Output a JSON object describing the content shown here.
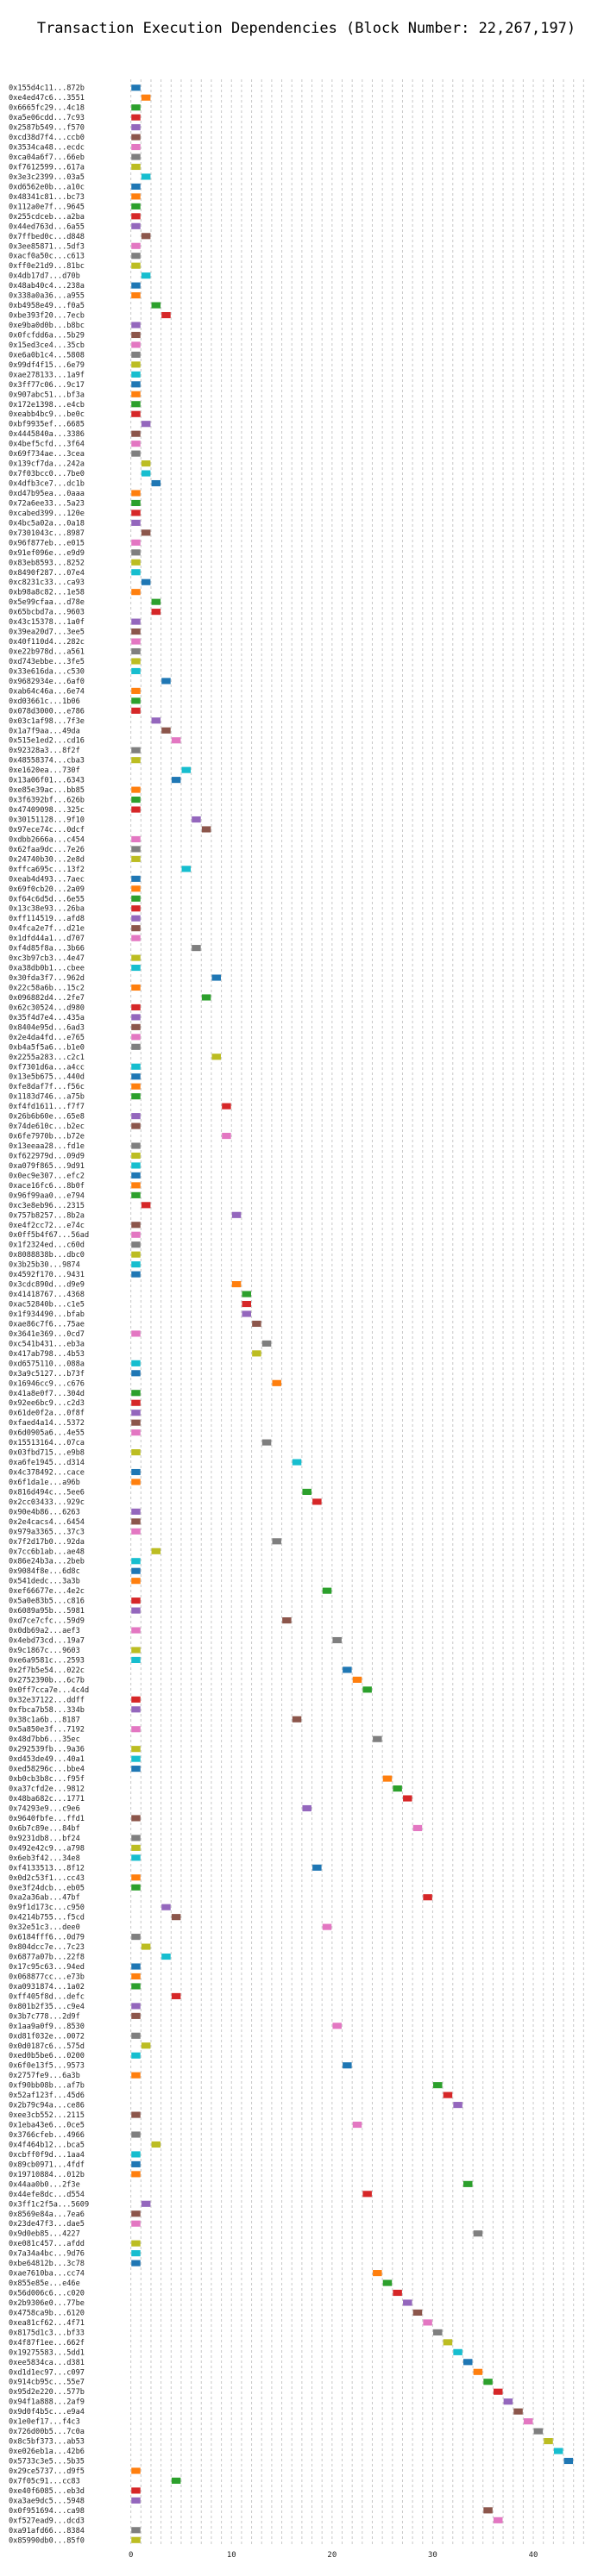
{
  "chart_data": {
    "type": "bar",
    "orientation": "horizontal",
    "title": "Transaction Execution Dependencies (Block Number: 22,267,197)",
    "xlabel": "",
    "ylabel": "",
    "xlim": [
      -1,
      46
    ],
    "xticks": [
      0,
      10,
      20,
      30,
      40
    ],
    "grid": true,
    "bar_width": 0.9,
    "palette": [
      "#1f77b4",
      "#ff7f0e",
      "#2ca02c",
      "#d62728",
      "#9467bd",
      "#8c564b",
      "#e377c2",
      "#7f7f7f",
      "#bcbd22",
      "#17becf"
    ],
    "categories": [
      "0x155d4c11...872b",
      "0xe4ed47c6...3551",
      "0x6665fc29...4c18",
      "0xa5e06cdd...7c93",
      "0x2587b549...f570",
      "0xcd38d7f4...ccb0",
      "0x3534ca48...ecdc",
      "0xca04a6f7...66eb",
      "0xf7612599...617a",
      "0x3e3c2399...03a5",
      "0xd6562e0b...a10c",
      "0x48341c81...bc73",
      "0x112a0e7f...9645",
      "0x255cdceb...a2ba",
      "0x44ed763d...6a55",
      "0x7ffbed0c...d848",
      "0x3ee85871...5df3",
      "0xacf0a50c...c613",
      "0xff0e21d9...81bc",
      "0x4db17d7...d70b",
      "0x48ab40c4...238a",
      "0x338a0a36...a955",
      "0xb4958e49...f0a5",
      "0xbe393f20...7ecb",
      "0xe9ba0d0b...b8bc",
      "0x0fcfdd6a...5b29",
      "0x15ed3ce4...35cb",
      "0xe6a0b1c4...5808",
      "0x99df4f15...6e79",
      "0xae278133...1a9f",
      "0x3ff77c06...9c17",
      "0x907abc51...bf3a",
      "0x172e1398...e4cb",
      "0xeabb4bc9...be0c",
      "0xbf9935ef...6685",
      "0x4445840a...3386",
      "0x4bef5cfd...3f64",
      "0x69f734ae...3cea",
      "0x139cf7da...242a",
      "0x7f03bcc0...7be0",
      "0x4dfb3ce7...dc1b",
      "0xd47b95ea...0aaa",
      "0x72a6ee33...5a23",
      "0xcabed399...120e",
      "0x4bc5a02a...0a18",
      "0x7301043c...8987",
      "0x96f877eb...e015",
      "0x91ef096e...e9d9",
      "0x83eb8593...8252",
      "0x8490f287...07e4",
      "0xc8231c33...ca93",
      "0xb98a8c82...1e58",
      "0x5e99cfaa...d78e",
      "0x65bcbd7a...9603",
      "0x43c15378...1a0f",
      "0x39ea20d7...3ee5",
      "0x40f110d4...282c",
      "0xe22b978d...a561",
      "0xd743ebbe...3fe5",
      "0x33e616da...c530",
      "0x9682934e...6af0",
      "0xab64c46a...6e74",
      "0xd03661c...1b06",
      "0x078d3000...e786",
      "0x03c1af98...7f3e",
      "0x1a7f9aa...49da",
      "0x515e1ed2...cd16",
      "0x92328a3...8f2f",
      "0x48558374...cba3",
      "0xe1620ea...730f",
      "0x13a06f01...6343",
      "0xe85e39ac...bb85",
      "0x3f6392bf...626b",
      "0x47409098...325c",
      "0x30151128...9f10",
      "0x97ece74c...0dcf",
      "0xdbb2666a...c454",
      "0x62faa9dc...7e26",
      "0x24740b30...2e8d",
      "0xffca695c...13f2",
      "0xeab4d493...7aec",
      "0x69f0cb20...2a09",
      "0xf64c6d5d...6e55",
      "0x13c38e93...26ba",
      "0xff114519...afd8",
      "0x4fca2e7f...d21e",
      "0x1dfd44a1...d707",
      "0xf4d85f8a...3b66",
      "0xc3b97cb3...4e47",
      "0xa38db0b1...cbee",
      "0x30fda3f7...962d",
      "0x22c58a6b...15c2",
      "0x096882d4...2fe7",
      "0x62c30524...d980",
      "0x35f4d7e4...435a",
      "0x8404e95d...6ad3",
      "0x2e4da4fd...e765",
      "0xb4a5f5a6...b1e0",
      "0x2255a283...c2c1",
      "0xf7301d6a...a4cc",
      "0x13e5b675...440d",
      "0xfe8daf7f...f56c",
      "0x1183d746...a75b",
      "0xf4fd1611...f7f7",
      "0x26b6b60e...65e8",
      "0x74de610c...b2ec",
      "0x6fe7970b...b72e",
      "0x13eeaa28...fd1e",
      "0xf622979d...09d9",
      "0xa079f865...9d91",
      "0x0ec9e307...efc2",
      "0xace16fc6...8b0f",
      "0x96f99aa0...e794",
      "0xc3e8eb96...2315",
      "0x757b8257...8b2a",
      "0xe4f2cc72...e74c",
      "0x0ff5b4f67...56ad",
      "0x1f2324ed...c60d",
      "0x8088838b...dbc0",
      "0x3b25b30...9874",
      "0x4592f170...9431",
      "0x3cdc890d...d9e9",
      "0x41418767...4368",
      "0xac52840b...c1e5",
      "0x1f934490...bfab",
      "0xae86c7f6...75ae",
      "0x3641e369...0cd7",
      "0xc541b431...eb3a",
      "0x417ab798...4b53",
      "0xd6575110...088a",
      "0x3a9c5127...b73f",
      "0x16946cc9...c676",
      "0x41a8e0f7...304d",
      "0x92ee6bc9...c2d3",
      "0x61de0f2a...0f8f",
      "0xfaed4a14...5372",
      "0x6d0905a6...4e55",
      "0x15513164...07ca",
      "0x03fbd715...e9b8",
      "0xa6fe1945...d314",
      "0x4c378492...cace",
      "0x6f1da1e...a96b",
      "0x816d494c...5ee6",
      "0x2cc03433...929c",
      "0x90e4b86...6263",
      "0x2e4cacs4...6454",
      "0x979a3365...37c3",
      "0x7f2d17b0...92da",
      "0x7cc6b1ab...ae48",
      "0x86e24b3a...2beb",
      "0x9084f8e...6d8c",
      "0x541dedc...3a3b",
      "0xef66677e...4e2c",
      "0x5a0e83b5...c816",
      "0x6089a95b...5981",
      "0xd7ce7cfc...59d9",
      "0x0db69a2...aef3",
      "0x4ebd73cd...19a7",
      "0x9c1867c...9603",
      "0xe6a9581c...2593",
      "0x2f7b5e54...022c",
      "0x2752390b...6c7b",
      "0x0ff7cca7e...4c4d",
      "0x32e37122...ddff",
      "0xfbca7b58...334b",
      "0x38c1a6b...8187",
      "0x5a850e3f...7192",
      "0x48d7bb6...35ec",
      "0x292539fb...9a36",
      "0xd453de49...40a1",
      "0xed58296c...bbe4",
      "0xb0cb3b8c...f95f",
      "0xa37cfd2e...9812",
      "0x48ba682c...1771",
      "0x74293e9...c9e6",
      "0x9640fbfe...ffd1",
      "0x6b7c89e...84bf",
      "0x9231db8...bf24",
      "0x492e42c9...a798",
      "0x6eb3f42...34e8",
      "0xf4133513...8f12",
      "0x0d2c53f1...cc43",
      "0xe3f24dcb...eb05",
      "0xa2a36ab...47bf",
      "0x9f1d173c...c950",
      "0x4214b755...f5cd",
      "0x32e51c3...dee0",
      "0x6184fff6...0d79",
      "0x804dcc7e...7c23",
      "0x6877a07b...22f8",
      "0x17c95c63...94ed",
      "0x068877cc...e73b",
      "0xa0931874...1a02",
      "0xff405f8d...defc",
      "0x801b2f35...c9e4",
      "0x3b7c778...2d9f",
      "0x1aa9a0f9...8530",
      "0xd81f032e...0072",
      "0x0d0187c6...575d",
      "0xed0b5be6...0200",
      "0x6f0e13f5...9573",
      "0x2757fe9...6a3b",
      "0xf90bb08b...af7b",
      "0x52af123f...45d6",
      "0x2b79c94a...ce86",
      "0xee3cb552...2115",
      "0x1eba43e6...0ce5",
      "0x3766cfeb...4966",
      "0x4f464b12...bca5",
      "0xcbff0f9d...1aa4",
      "0x89cb0971...4fdf",
      "0x19710884...012b",
      "0x44aa0b0...2f3e",
      "0x44efe8dc...d554",
      "0x3ff1c2f5a...5609",
      "0x8569e84a...7ea6",
      "0x23de47f3...dae5",
      "0x9d0eb85...4227",
      "0xe081c457...afdd",
      "0x7a34a4bc...9d76",
      "0xbe64812b...3c78",
      "0xae7610ba...cc74",
      "0x855e85e...e46e",
      "0x56d006c6...c020",
      "0x2b9306e0...77be",
      "0x4758ca9b...6120",
      "0xea81cf62...4f71",
      "0x8175d1c3...bf33",
      "0x4f87f1ee...662f",
      "0x19275583...5dd1",
      "0xee5834ca...d381",
      "0xd1d1ec97...c097",
      "0x914cb95c...55e7",
      "0x95d2e220...577b",
      "0x94f1a888...2af9",
      "0x9d0f4b5c...e9a4",
      "0x1e0ef17...f4c3",
      "0x726d00b5...7c0a",
      "0x8c5bf373...ab53",
      "0xe026eb1a...42b6",
      "0x5733c3e5...5b35",
      "0x29ce5737...d9f5",
      "0x7f05c91...cc83",
      "0xe40f6085...eb3d",
      "0xa3ae9dc5...5948",
      "0x0f951694...ca98",
      "0xf527ead9...dcd3",
      "0xa91afd66...8384",
      "0x85990db0...85f0"
    ],
    "values": [
      [
        0,
        1
      ],
      [
        1,
        2
      ],
      [
        0,
        1
      ],
      [
        0,
        1
      ],
      [
        0,
        1
      ],
      [
        0,
        1
      ],
      [
        0,
        1
      ],
      [
        0,
        1
      ],
      [
        0,
        1
      ],
      [
        1,
        2
      ],
      [
        0,
        1
      ],
      [
        0,
        1
      ],
      [
        0,
        1
      ],
      [
        0,
        1
      ],
      [
        0,
        1
      ],
      [
        1,
        2
      ],
      [
        0,
        1
      ],
      [
        0,
        1
      ],
      [
        0,
        1
      ],
      [
        1,
        2
      ],
      [
        0,
        1
      ],
      [
        0,
        1
      ],
      [
        2,
        3
      ],
      [
        3,
        4
      ],
      [
        0,
        1
      ],
      [
        0,
        1
      ],
      [
        0,
        1
      ],
      [
        0,
        1
      ],
      [
        0,
        1
      ],
      [
        0,
        1
      ],
      [
        0,
        1
      ],
      [
        0,
        1
      ],
      [
        0,
        1
      ],
      [
        0,
        1
      ],
      [
        1,
        2
      ],
      [
        0,
        1
      ],
      [
        0,
        1
      ],
      [
        0,
        1
      ],
      [
        1,
        2
      ],
      [
        1,
        2
      ],
      [
        2,
        3
      ],
      [
        0,
        1
      ],
      [
        0,
        1
      ],
      [
        0,
        1
      ],
      [
        0,
        1
      ],
      [
        1,
        2
      ],
      [
        0,
        1
      ],
      [
        0,
        1
      ],
      [
        0,
        1
      ],
      [
        0,
        1
      ],
      [
        1,
        2
      ],
      [
        0,
        1
      ],
      [
        2,
        3
      ],
      [
        2,
        3
      ],
      [
        0,
        1
      ],
      [
        0,
        1
      ],
      [
        0,
        1
      ],
      [
        0,
        1
      ],
      [
        0,
        1
      ],
      [
        0,
        1
      ],
      [
        3,
        4
      ],
      [
        0,
        1
      ],
      [
        0,
        1
      ],
      [
        0,
        1
      ],
      [
        2,
        3
      ],
      [
        3,
        4
      ],
      [
        4,
        5
      ],
      [
        0,
        1
      ],
      [
        0,
        1
      ],
      [
        5,
        6
      ],
      [
        4,
        5
      ],
      [
        0,
        1
      ],
      [
        0,
        1
      ],
      [
        0,
        1
      ],
      [
        6,
        7
      ],
      [
        7,
        8
      ],
      [
        0,
        1
      ],
      [
        0,
        1
      ],
      [
        0,
        1
      ],
      [
        5,
        6
      ],
      [
        0,
        1
      ],
      [
        0,
        1
      ],
      [
        0,
        1
      ],
      [
        0,
        1
      ],
      [
        0,
        1
      ],
      [
        0,
        1
      ],
      [
        0,
        1
      ],
      [
        6,
        7
      ],
      [
        0,
        1
      ],
      [
        0,
        1
      ],
      [
        8,
        9
      ],
      [
        0,
        1
      ],
      [
        7,
        8
      ],
      [
        0,
        1
      ],
      [
        0,
        1
      ],
      [
        0,
        1
      ],
      [
        0,
        1
      ],
      [
        0,
        1
      ],
      [
        8,
        9
      ],
      [
        0,
        1
      ],
      [
        0,
        1
      ],
      [
        0,
        1
      ],
      [
        0,
        1
      ],
      [
        9,
        10
      ],
      [
        0,
        1
      ],
      [
        0,
        1
      ],
      [
        9,
        10
      ],
      [
        0,
        1
      ],
      [
        0,
        1
      ],
      [
        0,
        1
      ],
      [
        0,
        1
      ],
      [
        0,
        1
      ],
      [
        0,
        1
      ],
      [
        1,
        2
      ],
      [
        10,
        11
      ],
      [
        0,
        1
      ],
      [
        0,
        1
      ],
      [
        0,
        1
      ],
      [
        0,
        1
      ],
      [
        0,
        1
      ],
      [
        0,
        1
      ],
      [
        10,
        11
      ],
      [
        11,
        12
      ],
      [
        11,
        12
      ],
      [
        11,
        12
      ],
      [
        12,
        13
      ],
      [
        0,
        1
      ],
      [
        13,
        14
      ],
      [
        12,
        13
      ],
      [
        0,
        1
      ],
      [
        0,
        1
      ],
      [
        14,
        15
      ],
      [
        0,
        1
      ],
      [
        0,
        1
      ],
      [
        0,
        1
      ],
      [
        0,
        1
      ],
      [
        0,
        1
      ],
      [
        13,
        14
      ],
      [
        0,
        1
      ],
      [
        16,
        17
      ],
      [
        0,
        1
      ],
      [
        0,
        1
      ],
      [
        17,
        18
      ],
      [
        18,
        19
      ],
      [
        0,
        1
      ],
      [
        0,
        1
      ],
      [
        0,
        1
      ],
      [
        14,
        15
      ],
      [
        2,
        3
      ],
      [
        0,
        1
      ],
      [
        0,
        1
      ],
      [
        0,
        1
      ],
      [
        19,
        20
      ],
      [
        0,
        1
      ],
      [
        0,
        1
      ],
      [
        15,
        16
      ],
      [
        0,
        1
      ],
      [
        20,
        21
      ],
      [
        0,
        1
      ],
      [
        0,
        1
      ],
      [
        21,
        22
      ],
      [
        22,
        23
      ],
      [
        23,
        24
      ],
      [
        0,
        1
      ],
      [
        0,
        1
      ],
      [
        16,
        17
      ],
      [
        0,
        1
      ],
      [
        24,
        25
      ],
      [
        0,
        1
      ],
      [
        0,
        1
      ],
      [
        0,
        1
      ],
      [
        25,
        26
      ],
      [
        26,
        27
      ],
      [
        27,
        28
      ],
      [
        17,
        18
      ],
      [
        0,
        1
      ],
      [
        28,
        29
      ],
      [
        0,
        1
      ],
      [
        0,
        1
      ],
      [
        0,
        1
      ],
      [
        18,
        19
      ],
      [
        0,
        1
      ],
      [
        0,
        1
      ],
      [
        29,
        30
      ],
      [
        3,
        4
      ],
      [
        4,
        5
      ],
      [
        19,
        20
      ],
      [
        0,
        1
      ],
      [
        1,
        2
      ],
      [
        3,
        4
      ],
      [
        0,
        1
      ],
      [
        0,
        1
      ],
      [
        0,
        1
      ],
      [
        4,
        5
      ],
      [
        0,
        1
      ],
      [
        0,
        1
      ],
      [
        20,
        21
      ],
      [
        0,
        1
      ],
      [
        1,
        2
      ],
      [
        0,
        1
      ],
      [
        21,
        22
      ],
      [
        0,
        1
      ],
      [
        30,
        31
      ],
      [
        31,
        32
      ],
      [
        32,
        33
      ],
      [
        0,
        1
      ],
      [
        22,
        23
      ],
      [
        0,
        1
      ],
      [
        2,
        3
      ],
      [
        0,
        1
      ],
      [
        0,
        1
      ],
      [
        0,
        1
      ],
      [
        33,
        34
      ],
      [
        23,
        24
      ],
      [
        1,
        2
      ],
      [
        0,
        1
      ],
      [
        0,
        1
      ],
      [
        34,
        35
      ],
      [
        0,
        1
      ],
      [
        0,
        1
      ],
      [
        0,
        1
      ],
      [
        24,
        25
      ],
      [
        25,
        26
      ],
      [
        26,
        27
      ],
      [
        27,
        28
      ],
      [
        28,
        29
      ],
      [
        29,
        30
      ],
      [
        30,
        31
      ],
      [
        31,
        32
      ],
      [
        32,
        33
      ],
      [
        33,
        34
      ],
      [
        34,
        35
      ],
      [
        35,
        36
      ],
      [
        36,
        37
      ],
      [
        37,
        38
      ],
      [
        38,
        39
      ],
      [
        39,
        40
      ],
      [
        40,
        41
      ],
      [
        41,
        42
      ],
      [
        42,
        43
      ],
      [
        43,
        44
      ],
      [
        0,
        1
      ],
      [
        4,
        5
      ],
      [
        0,
        1
      ],
      [
        0,
        1
      ],
      [
        35,
        36
      ],
      [
        36,
        37
      ],
      [
        0,
        1
      ],
      [
        0,
        1
      ]
    ]
  }
}
